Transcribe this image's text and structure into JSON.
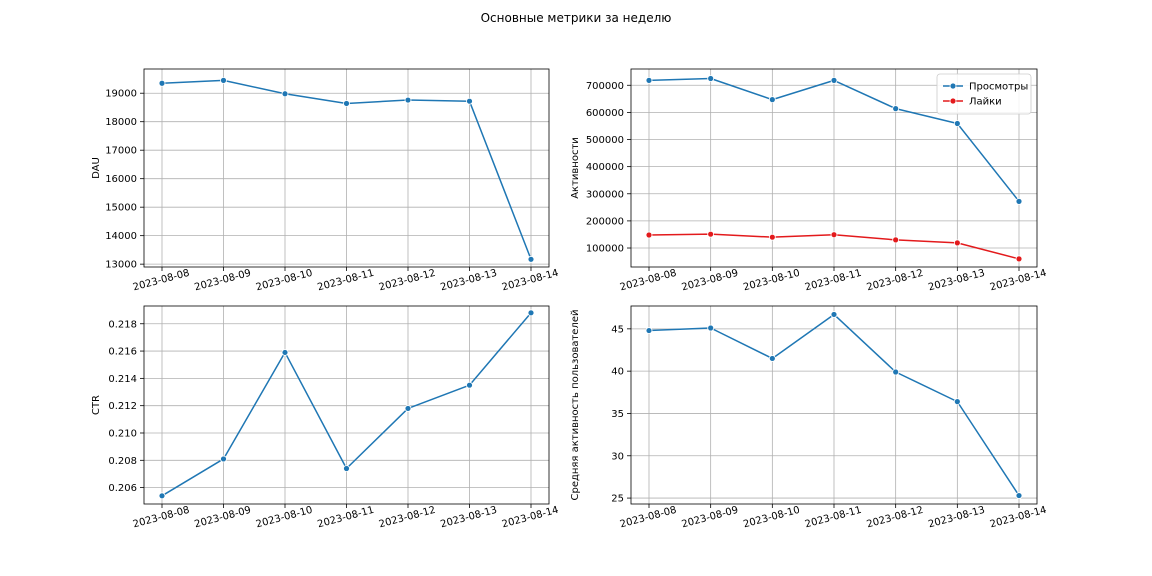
{
  "figure": {
    "suptitle": "Основные метрики за неделю"
  },
  "chart_data": [
    {
      "type": "line",
      "id": "dau",
      "title": "",
      "xlabel": "",
      "ylabel": "DAU",
      "x": [
        "2023-08-08",
        "2023-08-09",
        "2023-08-10",
        "2023-08-11",
        "2023-08-12",
        "2023-08-13",
        "2023-08-14"
      ],
      "ylim": [
        12900,
        19850
      ],
      "yticks": [
        13000,
        14000,
        15000,
        16000,
        17000,
        18000,
        19000
      ],
      "ytick_labels": [
        "13000",
        "14000",
        "15000",
        "16000",
        "17000",
        "18000",
        "19000"
      ],
      "grid": true,
      "legend": false,
      "series": [
        {
          "name": "",
          "color": "#1f77b4",
          "values": [
            19350,
            19450,
            18980,
            18640,
            18760,
            18720,
            13170
          ]
        }
      ]
    },
    {
      "type": "line",
      "id": "activity",
      "title": "",
      "xlabel": "",
      "ylabel": "Активности",
      "x": [
        "2023-08-08",
        "2023-08-09",
        "2023-08-10",
        "2023-08-11",
        "2023-08-12",
        "2023-08-13",
        "2023-08-14"
      ],
      "ylim": [
        30000,
        760000
      ],
      "yticks": [
        100000,
        200000,
        300000,
        400000,
        500000,
        600000,
        700000
      ],
      "ytick_labels": [
        "100000",
        "200000",
        "300000",
        "400000",
        "500000",
        "600000",
        "700000"
      ],
      "grid": true,
      "legend": "top-right",
      "series": [
        {
          "name": "Просмотры",
          "color": "#1f77b4",
          "values": [
            718000,
            725000,
            647000,
            718000,
            614000,
            559000,
            272000
          ]
        },
        {
          "name": "Лайки",
          "color": "#e31a1c",
          "values": [
            148000,
            151000,
            140000,
            149000,
            130000,
            119000,
            60000
          ]
        }
      ]
    },
    {
      "type": "line",
      "id": "ctr",
      "title": "",
      "xlabel": "",
      "ylabel": "CTR",
      "x": [
        "2023-08-08",
        "2023-08-09",
        "2023-08-10",
        "2023-08-11",
        "2023-08-12",
        "2023-08-13",
        "2023-08-14"
      ],
      "ylim": [
        0.2048,
        0.2193
      ],
      "yticks": [
        0.206,
        0.208,
        0.21,
        0.212,
        0.214,
        0.216,
        0.218
      ],
      "ytick_labels": [
        "0.206",
        "0.208",
        "0.210",
        "0.212",
        "0.214",
        "0.216",
        "0.218"
      ],
      "grid": true,
      "legend": false,
      "series": [
        {
          "name": "",
          "color": "#1f77b4",
          "values": [
            0.2054,
            0.2081,
            0.2159,
            0.2074,
            0.2118,
            0.2135,
            0.2188
          ]
        }
      ]
    },
    {
      "type": "line",
      "id": "avg_activity",
      "title": "",
      "xlabel": "",
      "ylabel": "Средняя активность пользователей",
      "x": [
        "2023-08-08",
        "2023-08-09",
        "2023-08-10",
        "2023-08-11",
        "2023-08-12",
        "2023-08-13",
        "2023-08-14"
      ],
      "ylim": [
        24.3,
        47.7
      ],
      "yticks": [
        25,
        30,
        35,
        40,
        45
      ],
      "ytick_labels": [
        "25",
        "30",
        "35",
        "40",
        "45"
      ],
      "grid": true,
      "legend": false,
      "series": [
        {
          "name": "",
          "color": "#1f77b4",
          "values": [
            44.8,
            45.1,
            41.5,
            46.7,
            39.9,
            36.4,
            25.3
          ]
        }
      ]
    }
  ]
}
